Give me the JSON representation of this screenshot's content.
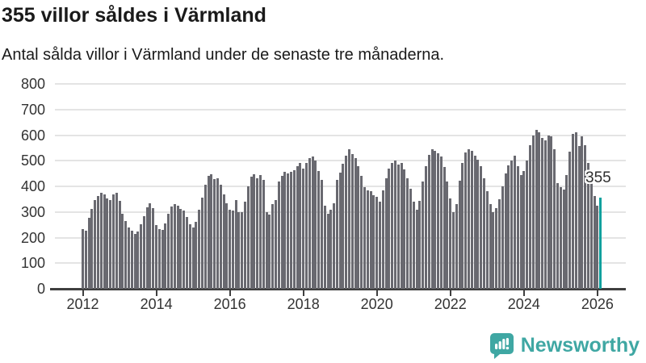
{
  "header": {
    "title": "355 villor såldes i Värmland",
    "subtitle": "Antal sålda villor i Värmland under de senaste tre månaderna."
  },
  "annotation": {
    "label": "355"
  },
  "footer": {
    "brand": "Newsworthy",
    "icon": "newsworthy-speech-bubble-barchart-icon"
  },
  "colors": {
    "bar": "#696970",
    "highlight": "#0aa09d",
    "grid": "#e4e4e4",
    "axis": "#3f3f3f",
    "text": "#1a1a1a",
    "tick_text": "#333333",
    "brand": "#3fa7a3"
  },
  "chart_data": {
    "type": "bar",
    "title": "355 villor såldes i Värmland",
    "subtitle": "Antal sålda villor i Värmland under de senaste tre månaderna.",
    "frequency": "monthly",
    "x_start": "2012-01",
    "x_end": "2026-02",
    "xlabel": "",
    "ylabel": "",
    "ylim": [
      0,
      800
    ],
    "grid": "horizontal",
    "y_ticks": [
      0,
      100,
      200,
      300,
      400,
      500,
      600,
      700,
      800
    ],
    "x_tick_labels": [
      "2012",
      "2014",
      "2016",
      "2018",
      "2020",
      "2022",
      "2024",
      "2026"
    ],
    "x_tick_month_index": [
      0,
      24,
      48,
      72,
      96,
      120,
      144,
      168
    ],
    "highlight_last": true,
    "highlight_value": 355,
    "values": [
      232,
      228,
      278,
      312,
      345,
      362,
      375,
      370,
      352,
      348,
      370,
      374,
      342,
      292,
      266,
      240,
      226,
      215,
      224,
      252,
      285,
      318,
      335,
      315,
      248,
      232,
      230,
      256,
      292,
      322,
      332,
      326,
      312,
      304,
      280,
      252,
      238,
      262,
      308,
      355,
      405,
      440,
      448,
      428,
      432,
      405,
      370,
      335,
      310,
      305,
      348,
      300,
      298,
      340,
      400,
      438,
      448,
      430,
      445,
      425,
      300,
      290,
      330,
      348,
      420,
      442,
      456,
      450,
      456,
      464,
      478,
      490,
      470,
      490,
      510,
      515,
      500,
      460,
      425,
      324,
      292,
      308,
      333,
      425,
      455,
      489,
      520,
      546,
      525,
      510,
      480,
      440,
      397,
      385,
      380,
      365,
      360,
      340,
      385,
      430,
      470,
      490,
      502,
      485,
      492,
      465,
      430,
      390,
      340,
      308,
      342,
      420,
      480,
      522,
      545,
      540,
      528,
      515,
      475,
      420,
      352,
      300,
      332,
      422,
      490,
      532,
      545,
      538,
      520,
      505,
      478,
      430,
      380,
      330,
      300,
      314,
      350,
      400,
      450,
      482,
      500,
      520,
      480,
      445,
      460,
      500,
      560,
      600,
      620,
      610,
      590,
      580,
      600,
      594,
      546,
      413,
      397,
      387,
      445,
      536,
      606,
      610,
      556,
      594,
      562,
      490,
      415,
      362,
      324,
      355
    ]
  }
}
